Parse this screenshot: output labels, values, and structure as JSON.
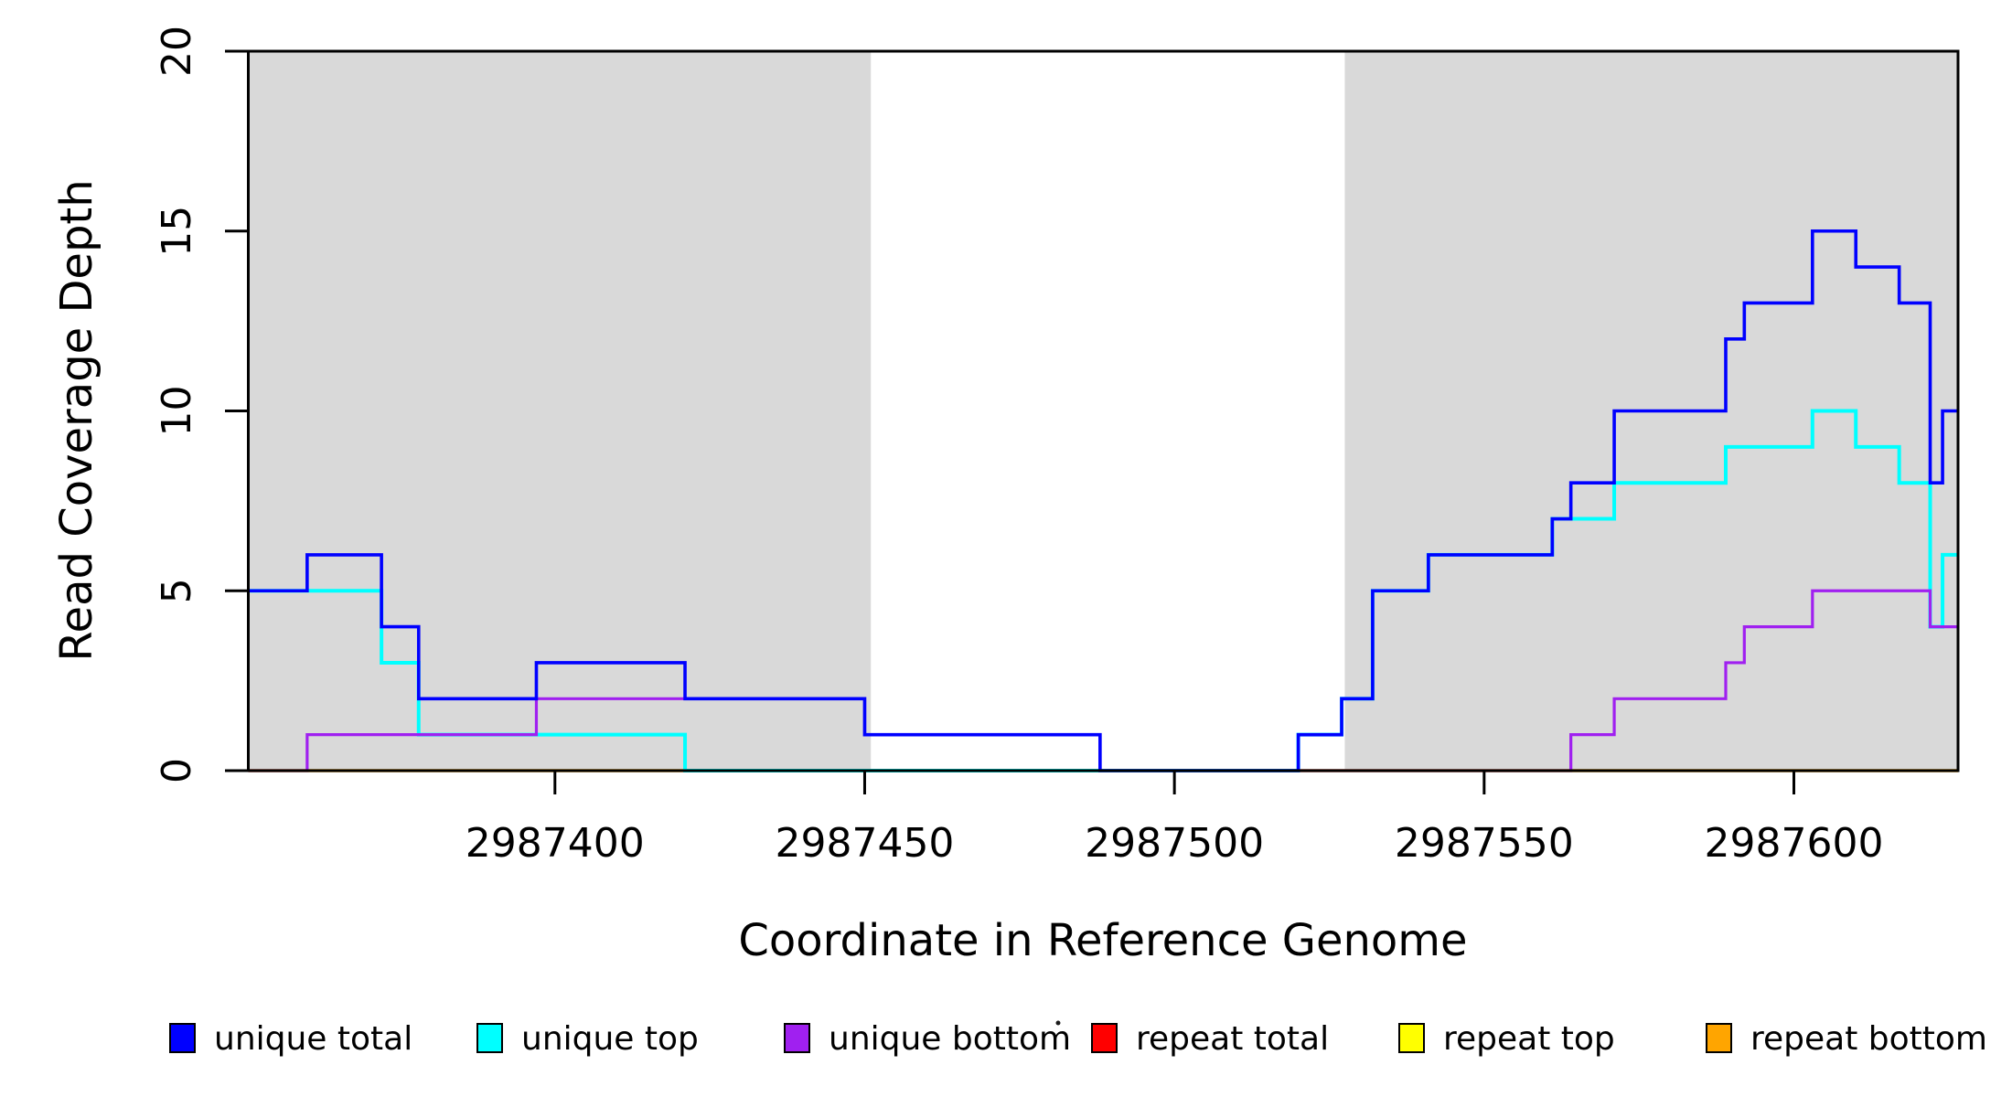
{
  "chart_data": {
    "type": "line",
    "subtype": "step-post",
    "title": "",
    "xlabel": "Coordinate in Reference Genome",
    "ylabel": "Read Coverage Depth",
    "xlim": [
      2987350.5,
      2987626.5
    ],
    "ylim": [
      0,
      20
    ],
    "x_ticks": [
      2987400,
      2987450,
      2987500,
      2987550,
      2987600
    ],
    "x_tick_labels": [
      "2987400",
      "2987450",
      "2987500",
      "2987550",
      "2987600"
    ],
    "y_ticks": [
      0,
      5,
      10,
      15,
      20
    ],
    "y_tick_labels": [
      "0",
      "5",
      "10",
      "15",
      "20"
    ],
    "grid": false,
    "background_color": "#ffffff",
    "shading_color": "#d9d9d9",
    "axis_color": "#000000",
    "shaded_regions": [
      {
        "name": "left-gray-region",
        "x0": 2987350.5,
        "x1": 2987451
      },
      {
        "name": "right-gray-region",
        "x0": 2987527.5,
        "x1": 2987626.5
      }
    ],
    "series": [
      {
        "name": "repeat total",
        "color": "#ff0000",
        "line_width": 3,
        "steps": [
          [
            2987350.5,
            0
          ]
        ]
      },
      {
        "name": "repeat top",
        "color": "#ffff00",
        "line_width": 3,
        "steps": [
          [
            2987350.5,
            0
          ]
        ]
      },
      {
        "name": "repeat bottom",
        "color": "#ffa500",
        "line_width": 3.4,
        "steps": [
          [
            2987350.5,
            0
          ]
        ]
      },
      {
        "name": "unique top",
        "color": "#00ffff",
        "line_width": 4,
        "steps": [
          [
            2987350.5,
            5
          ],
          [
            2987372,
            3
          ],
          [
            2987378,
            1
          ],
          [
            2987421,
            0
          ],
          [
            2987520,
            1
          ],
          [
            2987527,
            2
          ],
          [
            2987532,
            5
          ],
          [
            2987541,
            6
          ],
          [
            2987561,
            7
          ],
          [
            2987571,
            8
          ],
          [
            2987589,
            9
          ],
          [
            2987603,
            10
          ],
          [
            2987610,
            9
          ],
          [
            2987617,
            8
          ],
          [
            2987622,
            4
          ],
          [
            2987624,
            6
          ]
        ]
      },
      {
        "name": "unique bottom",
        "color": "#a020f0",
        "line_width": 3.2,
        "steps": [
          [
            2987350.5,
            0
          ],
          [
            2987360,
            1
          ],
          [
            2987397,
            2
          ],
          [
            2987450,
            1
          ],
          [
            2987488,
            0
          ],
          [
            2987564,
            1
          ],
          [
            2987571,
            2
          ],
          [
            2987589,
            3
          ],
          [
            2987592,
            4
          ],
          [
            2987603,
            5
          ],
          [
            2987622,
            4
          ]
        ]
      },
      {
        "name": "unique total",
        "color": "#0000ff",
        "line_width": 3.6,
        "steps": [
          [
            2987350.5,
            5
          ],
          [
            2987360,
            6
          ],
          [
            2987372,
            4
          ],
          [
            2987378,
            2
          ],
          [
            2987397,
            3
          ],
          [
            2987421,
            2
          ],
          [
            2987450,
            1
          ],
          [
            2987488,
            0
          ],
          [
            2987520,
            1
          ],
          [
            2987527,
            2
          ],
          [
            2987532,
            5
          ],
          [
            2987541,
            6
          ],
          [
            2987561,
            7
          ],
          [
            2987564,
            8
          ],
          [
            2987571,
            10
          ],
          [
            2987589,
            12
          ],
          [
            2987592,
            13
          ],
          [
            2987603,
            15
          ],
          [
            2987610,
            14
          ],
          [
            2987617,
            13
          ],
          [
            2987622,
            8
          ],
          [
            2987624,
            10
          ]
        ]
      }
    ],
    "legend": {
      "position": "bottom",
      "entries": [
        {
          "label": "unique total",
          "color": "#0000ff"
        },
        {
          "label": "unique top",
          "color": "#00ffff"
        },
        {
          "label": "unique bottom",
          "color": "#a020f0"
        },
        {
          "label": "repeat total",
          "color": "#ff0000"
        },
        {
          "label": "repeat top",
          "color": "#ffff00"
        },
        {
          "label": "repeat bottom",
          "color": "#ffa500"
        }
      ],
      "stray_mark": "·"
    }
  }
}
